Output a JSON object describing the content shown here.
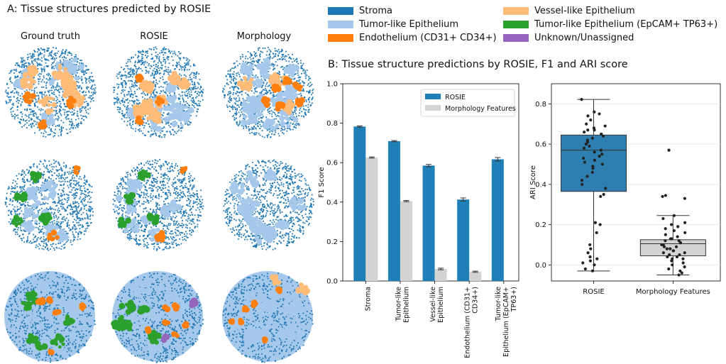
{
  "panel_a": {
    "title": "A: Tissue structures predicted by ROSIE",
    "columns": [
      "Ground truth",
      "ROSIE",
      "Morphology"
    ]
  },
  "panel_b": {
    "title": "B: Tissue structure predictions by ROSIE, F1 and ARI score"
  },
  "colors": {
    "stroma": "#1f77b4",
    "tumor_like": "#a6c8ea",
    "endothelium": "#ff7f0e",
    "vessel_like": "#ffbb78",
    "tumor_epcam": "#2ca02c",
    "unknown": "#9467bd",
    "morph_gray": "#d3d3d3",
    "rosie_blue": "#1f80b8"
  },
  "legend": [
    {
      "label": "Stroma",
      "color": "#1f77b4"
    },
    {
      "label": "Tumor-like Epithelium",
      "color": "#a6c8ea"
    },
    {
      "label": "Endothelium (CD31+ CD34+)",
      "color": "#ff7f0e"
    },
    {
      "label": "Vessel-like Epithelium",
      "color": "#ffbb78"
    },
    {
      "label": "Tumor-like Epithelium (EpCAM+ TP63+)",
      "color": "#2ca02c"
    },
    {
      "label": "Unknown/Unassigned",
      "color": "#9467bd"
    }
  ],
  "chart_data": [
    {
      "type": "bar",
      "ylabel": "F1 Score",
      "ylim": [
        0,
        1.0
      ],
      "yticks": [
        "0.0",
        "0.2",
        "0.4",
        "0.6",
        "0.8",
        "1.0"
      ],
      "categories": [
        "Stroma",
        "Tumor-like\nEpithelium",
        "Vessel-like\nEpithelium",
        "Endothelium (CD31+\nCD34+)",
        "Tumor-like\nEpithelium (EpCAM+\nTP63+)"
      ],
      "legend_position": "upper-right",
      "series": [
        {
          "name": "ROSIE",
          "color": "#1f80b8",
          "values": [
            0.783,
            0.709,
            0.585,
            0.413,
            0.617
          ],
          "errors": [
            0.003,
            0.003,
            0.006,
            0.008,
            0.009
          ]
        },
        {
          "name": "Morphology Features",
          "color": "#d3d3d3",
          "values": [
            0.626,
            0.405,
            0.061,
            0.047,
            null
          ],
          "errors": [
            0.003,
            0.003,
            0.004,
            0.003,
            null
          ]
        }
      ]
    },
    {
      "type": "box",
      "ylabel": "ARI Score",
      "ylim": [
        -0.08,
        0.9
      ],
      "yticks": [
        "0.0",
        "0.2",
        "0.4",
        "0.6",
        "0.8"
      ],
      "categories": [
        "ROSIE",
        "Morphology Features"
      ],
      "boxes": [
        {
          "name": "ROSIE",
          "whisker_low": -0.03,
          "q1": 0.365,
          "median": 0.57,
          "q3": 0.645,
          "whisker_high": 0.822,
          "color": "#2e7fb0",
          "points": [
            0.822,
            0.76,
            0.75,
            0.74,
            0.72,
            0.7,
            0.69,
            0.68,
            0.67,
            0.67,
            0.66,
            0.65,
            0.64,
            0.63,
            0.62,
            0.61,
            0.6,
            0.59,
            0.58,
            0.57,
            0.56,
            0.55,
            0.54,
            0.53,
            0.52,
            0.51,
            0.5,
            0.49,
            0.48,
            0.46,
            0.44,
            0.42,
            0.4,
            0.38,
            0.35,
            0.34,
            0.21,
            0.2,
            0.16,
            0.1,
            0.08,
            0.06,
            0.04,
            0.03,
            0.02,
            0.01,
            0.0,
            -0.02,
            -0.03
          ]
        },
        {
          "name": "Morphology Features",
          "whisker_low": -0.05,
          "q1": 0.045,
          "median": 0.105,
          "q3": 0.125,
          "whisker_high": 0.245,
          "color": "#d3d3d3",
          "points": [
            0.57,
            0.345,
            0.34,
            0.33,
            0.245,
            0.23,
            0.21,
            0.2,
            0.19,
            0.18,
            0.17,
            0.16,
            0.15,
            0.14,
            0.13,
            0.13,
            0.12,
            0.12,
            0.11,
            0.11,
            0.1,
            0.1,
            0.09,
            0.09,
            0.08,
            0.08,
            0.07,
            0.07,
            0.06,
            0.06,
            0.05,
            0.05,
            0.04,
            0.04,
            0.03,
            0.03,
            0.02,
            0.01,
            0.0,
            -0.01,
            -0.02,
            -0.03,
            -0.04,
            -0.05
          ]
        }
      ]
    }
  ]
}
